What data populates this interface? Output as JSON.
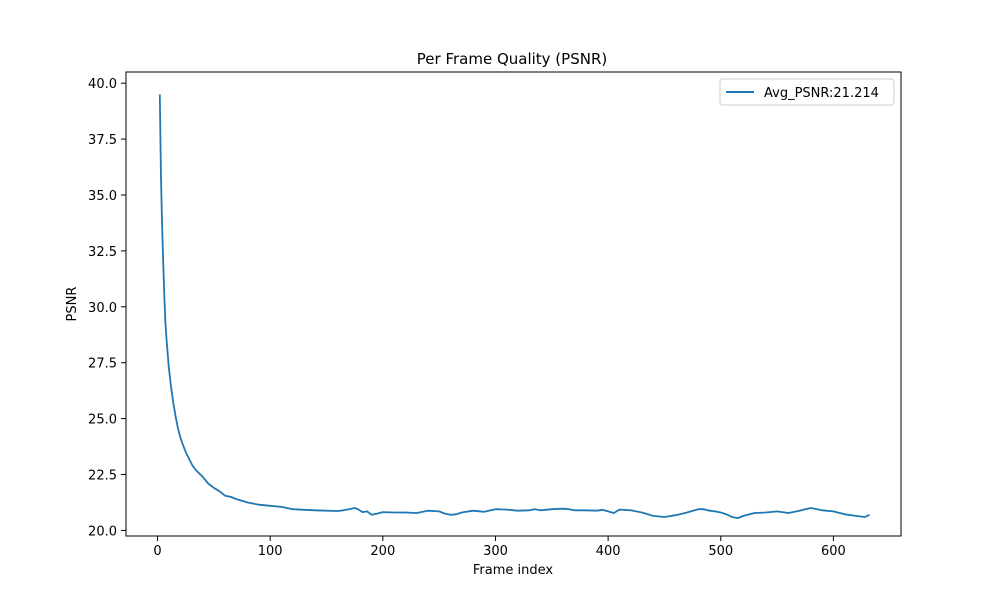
{
  "chart_data": {
    "type": "line",
    "title": "Per Frame Quality (PSNR)",
    "xlabel": "Frame index",
    "ylabel": "PSNR",
    "xlim": [
      -28,
      660
    ],
    "ylim": [
      19.75,
      40.5
    ],
    "xticks": [
      0,
      100,
      200,
      300,
      400,
      500,
      600
    ],
    "yticks": [
      20.0,
      22.5,
      25.0,
      27.5,
      30.0,
      32.5,
      35.0,
      37.5,
      40.0
    ],
    "ytick_labels": [
      "20.0",
      "22.5",
      "25.0",
      "27.5",
      "30.0",
      "32.5",
      "35.0",
      "37.5",
      "40.0"
    ],
    "grid": false,
    "legend_position": "top-right",
    "series": [
      {
        "name": "Avg_PSNR:21.214",
        "color": "#1f77b4",
        "x": [
          2,
          3,
          4,
          5,
          6,
          7,
          8,
          10,
          12,
          14,
          16,
          18,
          20,
          22,
          25,
          28,
          31,
          34,
          37,
          40,
          45,
          50,
          55,
          60,
          65,
          70,
          80,
          90,
          100,
          110,
          120,
          130,
          140,
          150,
          160,
          165,
          170,
          175,
          178,
          182,
          186,
          190,
          195,
          200,
          210,
          220,
          230,
          240,
          250,
          255,
          260,
          265,
          270,
          280,
          290,
          300,
          310,
          320,
          330,
          335,
          340,
          350,
          360,
          365,
          370,
          380,
          390,
          395,
          400,
          405,
          410,
          420,
          430,
          440,
          450,
          460,
          470,
          480,
          485,
          490,
          495,
          500,
          505,
          510,
          515,
          520,
          530,
          540,
          550,
          560,
          570,
          575,
          580,
          590,
          600,
          610,
          620,
          628,
          632
        ],
        "y": [
          39.5,
          36.0,
          33.8,
          32.0,
          30.5,
          29.3,
          28.5,
          27.3,
          26.4,
          25.7,
          25.1,
          24.6,
          24.2,
          23.9,
          23.5,
          23.2,
          22.9,
          22.7,
          22.55,
          22.4,
          22.1,
          21.9,
          21.75,
          21.55,
          21.5,
          21.4,
          21.25,
          21.15,
          21.1,
          21.05,
          20.95,
          20.92,
          20.9,
          20.88,
          20.87,
          20.9,
          20.95,
          21.0,
          20.95,
          20.82,
          20.85,
          20.7,
          20.75,
          20.82,
          20.8,
          20.8,
          20.78,
          20.88,
          20.85,
          20.75,
          20.7,
          20.72,
          20.8,
          20.88,
          20.83,
          20.95,
          20.93,
          20.88,
          20.9,
          20.95,
          20.9,
          20.95,
          20.97,
          20.95,
          20.9,
          20.9,
          20.88,
          20.92,
          20.85,
          20.78,
          20.93,
          20.9,
          20.8,
          20.65,
          20.6,
          20.68,
          20.8,
          20.95,
          20.95,
          20.88,
          20.85,
          20.8,
          20.72,
          20.6,
          20.55,
          20.65,
          20.78,
          20.8,
          20.85,
          20.78,
          20.88,
          20.95,
          21.0,
          20.9,
          20.85,
          20.72,
          20.65,
          20.6,
          20.7
        ]
      }
    ]
  }
}
